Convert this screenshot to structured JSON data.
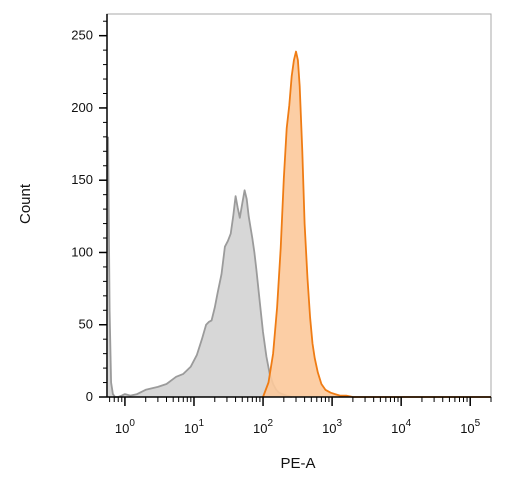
{
  "chart_data": {
    "type": "area",
    "title": "",
    "xlabel": "PE-A",
    "ylabel": "Count",
    "x_scale": "log",
    "xlim": [
      0.55,
      200000
    ],
    "ylim": [
      0,
      265
    ],
    "grid": false,
    "legend": "none",
    "x_ticks": [
      {
        "base": "10",
        "exp": "0",
        "value": 1
      },
      {
        "base": "10",
        "exp": "1",
        "value": 10
      },
      {
        "base": "10",
        "exp": "2",
        "value": 100
      },
      {
        "base": "10",
        "exp": "3",
        "value": 1000
      },
      {
        "base": "10",
        "exp": "4",
        "value": 10000
      },
      {
        "base": "10",
        "exp": "5",
        "value": 100000
      }
    ],
    "y_ticks": [
      {
        "label": "0",
        "value": 0
      },
      {
        "label": "50",
        "value": 50
      },
      {
        "label": "100",
        "value": 100
      },
      {
        "label": "150",
        "value": 150
      },
      {
        "label": "200",
        "value": 200
      },
      {
        "label": "250",
        "value": 250
      }
    ],
    "series": [
      {
        "fill": "#d3d3d3",
        "stroke": "#9b9b9b",
        "x": [
          0.57,
          0.6,
          0.63,
          0.67,
          0.72,
          0.8,
          0.9,
          1.0,
          1.2,
          1.5,
          2.0,
          3.0,
          4.0,
          5.5,
          7.0,
          9.0,
          11.0,
          13.0,
          15.0,
          16.5,
          18.0,
          20.0,
          22.0,
          25.0,
          28.0,
          31.0,
          34.0,
          37.0,
          40.0,
          43.0,
          46.0,
          50.0,
          54.0,
          58.0,
          62.0,
          66.0,
          70.0,
          75.0,
          80.0,
          90.0,
          100.0,
          112.0,
          125.0,
          140.0,
          155.0,
          170.0,
          190.0,
          220.0,
          260.0
        ],
        "y": [
          180,
          60,
          10,
          2,
          0,
          0,
          1,
          2,
          1,
          2,
          5,
          7,
          9,
          14,
          16,
          21,
          29,
          40,
          50,
          52,
          53,
          62,
          72,
          85,
          104,
          108,
          113,
          125,
          139,
          131,
          124,
          134,
          143,
          137,
          125,
          117,
          110,
          100,
          88,
          65,
          45,
          28,
          16,
          9,
          5,
          3,
          2,
          1,
          0
        ]
      },
      {
        "fill": "#fcc99b",
        "stroke": "#ef7c14",
        "x": [
          100.0,
          120.0,
          140.0,
          160.0,
          180.0,
          200.0,
          220.0,
          240.0,
          260.0,
          280.0,
          300.0,
          320.0,
          340.0,
          370.0,
          400.0,
          440.0,
          480.0,
          520.0,
          560.0,
          620.0,
          700.0,
          800.0,
          950.0,
          1100.0,
          1300.0,
          1600.0,
          2000.0,
          10000.0,
          100000.0,
          200000.0
        ],
        "y": [
          0,
          10,
          30,
          62,
          103,
          151,
          186,
          202,
          222,
          233,
          239,
          233,
          215,
          170,
          120,
          82,
          55,
          37,
          27,
          17,
          9,
          5,
          3,
          2,
          1,
          1,
          0,
          0,
          0,
          0
        ]
      }
    ]
  }
}
